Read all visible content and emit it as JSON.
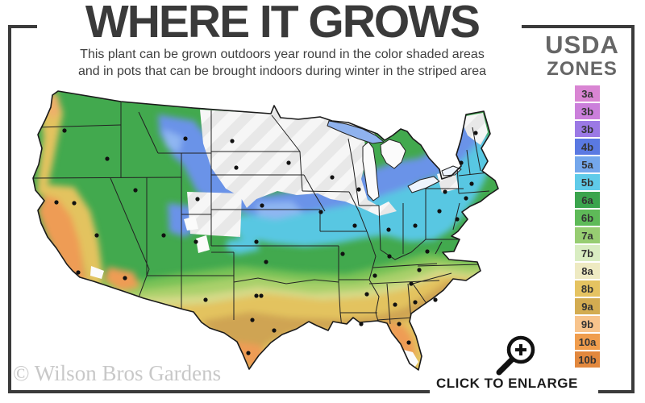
{
  "header": {
    "title": "WHERE IT GROWS",
    "subtitle_line1": "This plant can be grown outdoors year round in the color shaded areas",
    "subtitle_line2": "and in pots that can be brought indoors during winter in the striped area"
  },
  "legend": {
    "title_line1": "USDA",
    "title_line2": "ZONES",
    "zones": [
      {
        "label": "3a",
        "color": "#d985d3"
      },
      {
        "label": "3b",
        "color": "#cb7fdb"
      },
      {
        "label": "3b",
        "color": "#9b79e5"
      },
      {
        "label": "4b",
        "color": "#5a79e2"
      },
      {
        "label": "5a",
        "color": "#74a7ec"
      },
      {
        "label": "5b",
        "color": "#5fcbe9"
      },
      {
        "label": "6a",
        "color": "#3aa44d"
      },
      {
        "label": "6b",
        "color": "#5eba58"
      },
      {
        "label": "7a",
        "color": "#97cd72"
      },
      {
        "label": "7b",
        "color": "#d9edc2"
      },
      {
        "label": "8a",
        "color": "#eeeac2"
      },
      {
        "label": "8b",
        "color": "#e5c361"
      },
      {
        "label": "9a",
        "color": "#d3ac51"
      },
      {
        "label": "9b",
        "color": "#f8c48c"
      },
      {
        "label": "10a",
        "color": "#f09d4d"
      },
      {
        "label": "10b",
        "color": "#e2883e"
      }
    ]
  },
  "map": {
    "name": "USDA plant hardiness zones map of the continental United States",
    "palette": {
      "base_green": "#42a94e",
      "light_green": "#79c257",
      "yellow_green": "#a9d06a",
      "pale_gold": "#d6da88",
      "gold": "#e3c35f",
      "tan": "#cfa452",
      "orange": "#ee9c55",
      "orange_warm": "#eeb06a",
      "cyan": "#58c7e2",
      "blue": "#6b93e8",
      "light_blue": "#8fb6f2",
      "stripe_bg": "#f6f6f6",
      "stripe_line": "#e8e8e8",
      "plain_white": "#fbfbfb",
      "lake_blue": "#8fb2ee",
      "lake_pale": "#eef4fd",
      "state_border": "#222222",
      "outline": "#1a1a1a",
      "dot": "#111111"
    },
    "city_dots": [
      [
        80,
        162
      ],
      [
        133,
        197
      ],
      [
        70,
        251
      ],
      [
        92,
        252
      ],
      [
        97,
        338
      ],
      [
        120,
        292
      ],
      [
        168,
        236
      ],
      [
        155,
        345
      ],
      [
        203,
        292
      ],
      [
        230,
        172
      ],
      [
        245,
        247
      ],
      [
        243,
        300
      ],
      [
        255,
        372
      ],
      [
        288,
        175
      ],
      [
        293,
        208
      ],
      [
        325,
        255
      ],
      [
        318,
        300
      ],
      [
        330,
        325
      ],
      [
        318,
        367
      ],
      [
        324,
        367
      ],
      [
        313,
        397
      ],
      [
        340,
        410
      ],
      [
        308,
        438
      ],
      [
        358,
        202
      ],
      [
        398,
        263
      ],
      [
        412,
        220
      ],
      [
        425,
        315
      ],
      [
        455,
        365
      ],
      [
        448,
        402
      ],
      [
        440,
        280
      ],
      [
        482,
        285
      ],
      [
        445,
        235
      ],
      [
        515,
        280
      ],
      [
        483,
        318
      ],
      [
        465,
        342
      ],
      [
        490,
        378
      ],
      [
        515,
        375
      ],
      [
        540,
        372
      ],
      [
        510,
        352
      ],
      [
        520,
        335
      ],
      [
        530,
        312
      ],
      [
        545,
        262
      ],
      [
        552,
        238
      ],
      [
        567,
        272
      ],
      [
        590,
        165
      ],
      [
        572,
        202
      ],
      [
        585,
        228
      ],
      [
        578,
        246
      ],
      [
        495,
        402
      ],
      [
        507,
        425
      ]
    ]
  },
  "footer": {
    "watermark": "© Wilson Bros Gardens",
    "enlarge_label": "CLICK TO ENLARGE"
  }
}
